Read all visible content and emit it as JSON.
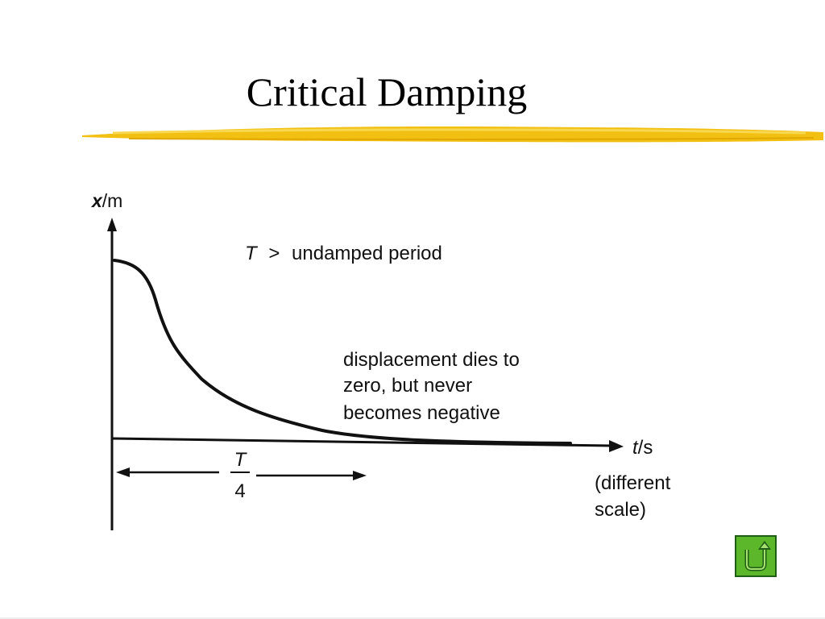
{
  "slide": {
    "title": "Critical Damping"
  },
  "diagram": {
    "y_axis_symbol": "x",
    "y_axis_unit": "/m",
    "x_axis_symbol": "t",
    "x_axis_unit": "/s",
    "period_symbol": "T",
    "period_relation": ">",
    "period_note": "undamped period",
    "annotation": [
      "displacement dies to",
      "zero, but never",
      "becomes negative"
    ],
    "quarter_period_numerator": "T",
    "quarter_period_denominator": "4",
    "scale_note": [
      "(different",
      "scale)"
    ]
  },
  "colors": {
    "underline": "#f2c012",
    "button_fill": "#5cb82a",
    "button_border": "#1f5e14"
  },
  "icons": {
    "return_button": "return-arrow-icon"
  }
}
